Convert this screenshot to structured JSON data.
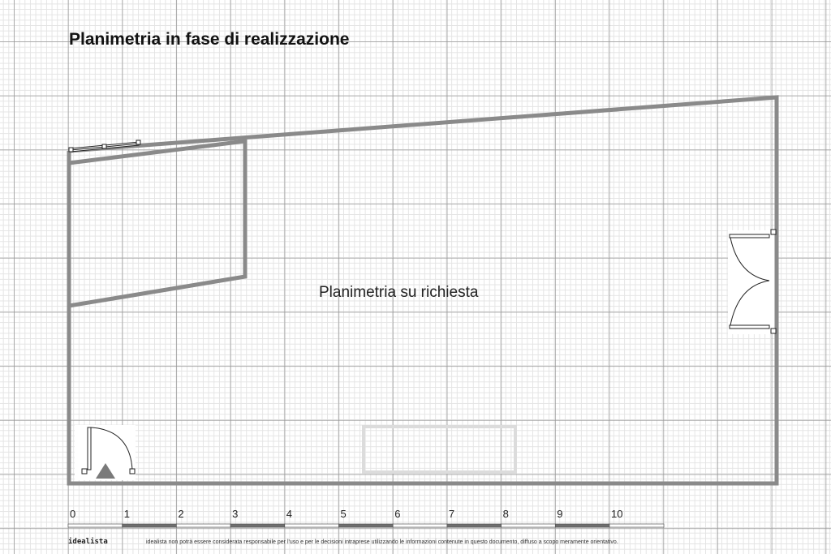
{
  "title": "Planimetria in fase di realizzazione",
  "center_label": "Planimetria su richiesta",
  "scale_bar": {
    "ticks": [
      "0",
      "1",
      "2",
      "3",
      "4",
      "5",
      "6",
      "7",
      "8",
      "9",
      "10"
    ],
    "unit_colors": [
      "#ffffff",
      "#6e6e6e"
    ]
  },
  "footer": {
    "brand": "idealista",
    "disclaimer": "idealista non potrà essere considerata responsabile per l'uso e per le decisioni intraprese utilizzando le informazioni contenute in questo documento, diffuso a scopo meramente orientativo."
  },
  "colors": {
    "wall": "#8a8a8a",
    "grid_major": "#969696",
    "grid_minor": "#e4e4e4",
    "furniture": "#dddddd"
  }
}
